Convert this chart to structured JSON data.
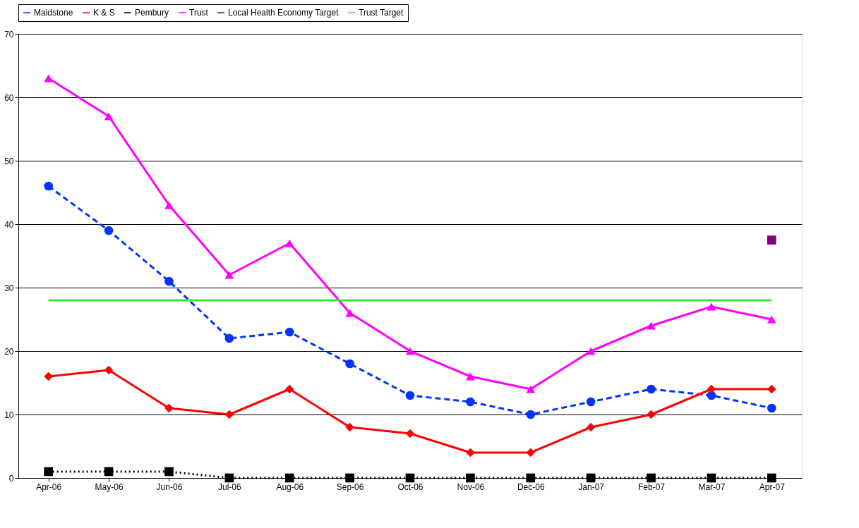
{
  "chart_data": {
    "type": "line",
    "categories": [
      "Apr-06",
      "May-06",
      "Jun-06",
      "Jul-06",
      "Aug-06",
      "Sep-06",
      "Oct-06",
      "Nov-06",
      "Dec-06",
      "Jan-07",
      "Feb-07",
      "Mar-07",
      "Apr-07"
    ],
    "series": [
      {
        "name": "Maidstone",
        "color": "#0033ff",
        "marker": "circle",
        "line_style": "dashed",
        "values": [
          46,
          39,
          31,
          22,
          23,
          18,
          13,
          12,
          10,
          12,
          14,
          13,
          11
        ]
      },
      {
        "name": "K & S",
        "color": "#ff0000",
        "marker": "diamond",
        "line_style": "solid",
        "values": [
          16,
          17,
          11,
          10,
          14,
          8,
          7,
          4,
          4,
          8,
          10,
          14,
          14
        ]
      },
      {
        "name": "Pembury",
        "color": "#000000",
        "marker": "square",
        "line_style": "dotted",
        "values": [
          1,
          1,
          1,
          0,
          0,
          0,
          0,
          0,
          0,
          0,
          0,
          0,
          0
        ]
      },
      {
        "name": "Trust",
        "color": "#ff00ff",
        "marker": "triangle",
        "line_style": "solid",
        "values": [
          63,
          57,
          43,
          32,
          37,
          26,
          20,
          16,
          14,
          20,
          24,
          27,
          25
        ]
      },
      {
        "name": "Local Health Economy Target",
        "color": "#800080",
        "marker": "square",
        "line_style": "solid",
        "values": [
          null,
          null,
          null,
          null,
          null,
          null,
          null,
          null,
          null,
          null,
          null,
          null,
          37.5
        ]
      },
      {
        "name": "Trust Target",
        "color": "#33ee33",
        "marker": "none",
        "line_style": "solid",
        "values": [
          28,
          28,
          28,
          28,
          28,
          28,
          28,
          28,
          28,
          28,
          28,
          28,
          28
        ]
      }
    ],
    "ylim": [
      0,
      70
    ],
    "yticks": [
      0,
      10,
      20,
      30,
      40,
      50,
      60,
      70
    ],
    "grid": "y",
    "legend": "top"
  }
}
